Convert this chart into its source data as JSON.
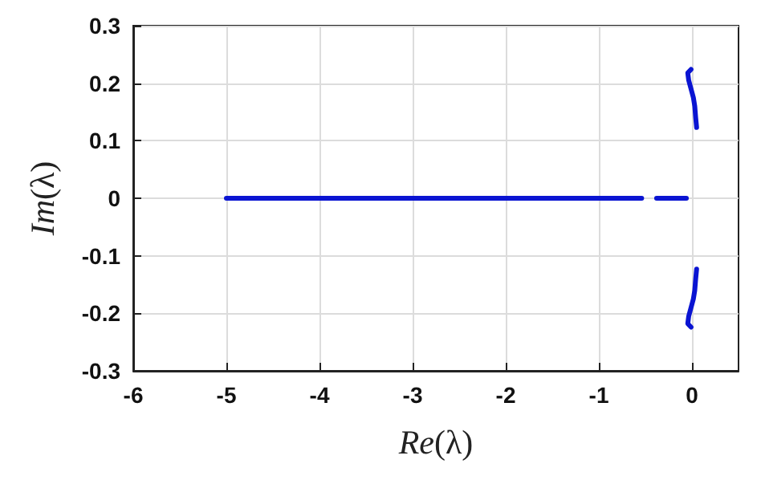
{
  "chart_data": {
    "type": "line",
    "xlabel": "Re(λ)",
    "ylabel": "Im(λ)",
    "xlim": [
      -6,
      0.5
    ],
    "ylim": [
      -0.3,
      0.3
    ],
    "xticks": [
      -6,
      -5,
      -4,
      -3,
      -2,
      -1,
      0
    ],
    "yticks": [
      -0.3,
      -0.2,
      -0.1,
      0,
      0.1,
      0.2,
      0.3
    ],
    "grid": true,
    "marker": "none",
    "line_style": "solid",
    "series": [
      {
        "color": "#0a14d2",
        "x": [
          -5,
          -0.54
        ],
        "values": [
          0,
          0
        ]
      },
      {
        "color": "#0a14d2",
        "x": [
          -0.38,
          -0.06
        ],
        "values": [
          0,
          0
        ]
      },
      {
        "color": "#0a14d2",
        "x": [
          -0.01,
          -0.045,
          -0.035,
          -0.01,
          0.015,
          0.03,
          0.04,
          0.05
        ],
        "values": [
          0.224,
          0.218,
          0.205,
          0.19,
          0.175,
          0.16,
          0.14,
          0.123
        ]
      },
      {
        "color": "#0a14d2",
        "x": [
          -0.01,
          -0.045,
          -0.035,
          -0.01,
          0.015,
          0.03,
          0.04,
          0.05
        ],
        "values": [
          -0.224,
          -0.218,
          -0.205,
          -0.19,
          -0.175,
          -0.16,
          -0.14,
          -0.123
        ]
      }
    ]
  }
}
